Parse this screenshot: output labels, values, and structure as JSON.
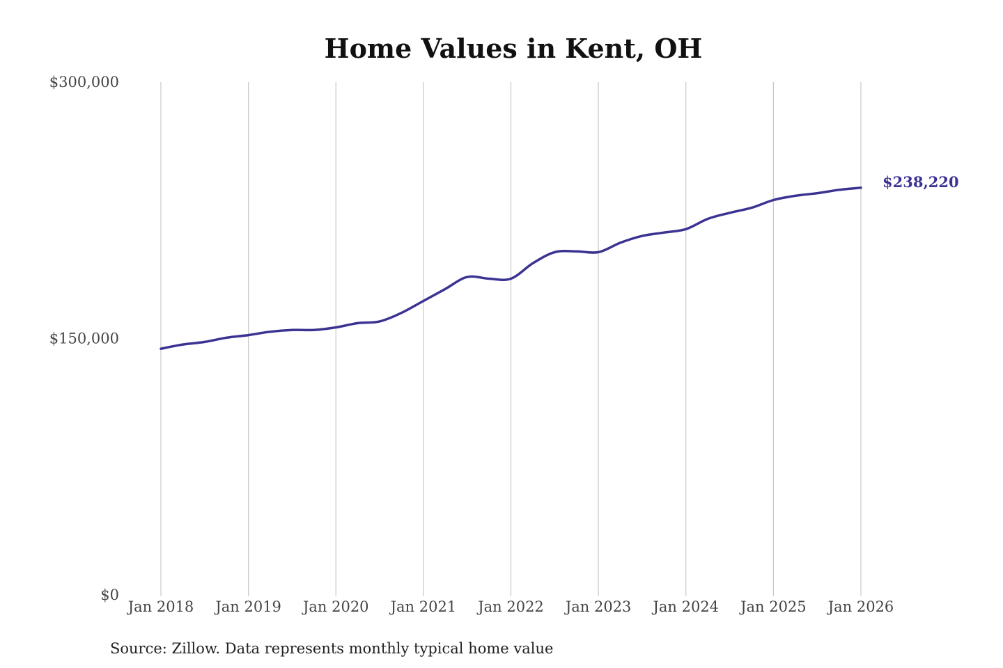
{
  "chart_data": {
    "type": "line",
    "title": "Home Values in Kent, OH",
    "xlabel": "",
    "ylabel": "",
    "y_ticks": [
      "$0",
      "$150,000",
      "$300,000"
    ],
    "y_tick_values": [
      0,
      150000,
      300000
    ],
    "ylim": [
      0,
      300000
    ],
    "x_ticks": [
      "Jan 2018",
      "Jan 2019",
      "Jan 2020",
      "Jan 2021",
      "Jan 2022",
      "Jan 2023",
      "Jan 2024",
      "Jan 2025",
      "Jan 2026"
    ],
    "xlim": [
      "2018-01",
      "2026-01"
    ],
    "grid": "vertical",
    "series": [
      {
        "color": "#3b3392",
        "end_label": "$238,220",
        "points": [
          [
            "2018-01",
            144000
          ],
          [
            "2018-04",
            146500
          ],
          [
            "2018-07",
            148000
          ],
          [
            "2018-10",
            150500
          ],
          [
            "2019-01",
            152000
          ],
          [
            "2019-04",
            154000
          ],
          [
            "2019-07",
            155000
          ],
          [
            "2019-10",
            155000
          ],
          [
            "2020-01",
            156500
          ],
          [
            "2020-04",
            159000
          ],
          [
            "2020-07",
            160000
          ],
          [
            "2020-10",
            165000
          ],
          [
            "2021-01",
            172000
          ],
          [
            "2021-04",
            179000
          ],
          [
            "2021-07",
            186000
          ],
          [
            "2021-10",
            185000
          ],
          [
            "2022-01",
            185000
          ],
          [
            "2022-04",
            194000
          ],
          [
            "2022-07",
            200500
          ],
          [
            "2022-10",
            201000
          ],
          [
            "2023-01",
            200500
          ],
          [
            "2023-04",
            206000
          ],
          [
            "2023-07",
            210000
          ],
          [
            "2023-10",
            212000
          ],
          [
            "2024-01",
            214000
          ],
          [
            "2024-04",
            220000
          ],
          [
            "2024-07",
            223500
          ],
          [
            "2024-10",
            226500
          ],
          [
            "2025-01",
            231000
          ],
          [
            "2025-04",
            233500
          ],
          [
            "2025-07",
            235000
          ],
          [
            "2025-10",
            237000
          ],
          [
            "2026-01",
            238220
          ]
        ]
      }
    ]
  },
  "source_note": "Source: Zillow. Data represents monthly typical home value"
}
